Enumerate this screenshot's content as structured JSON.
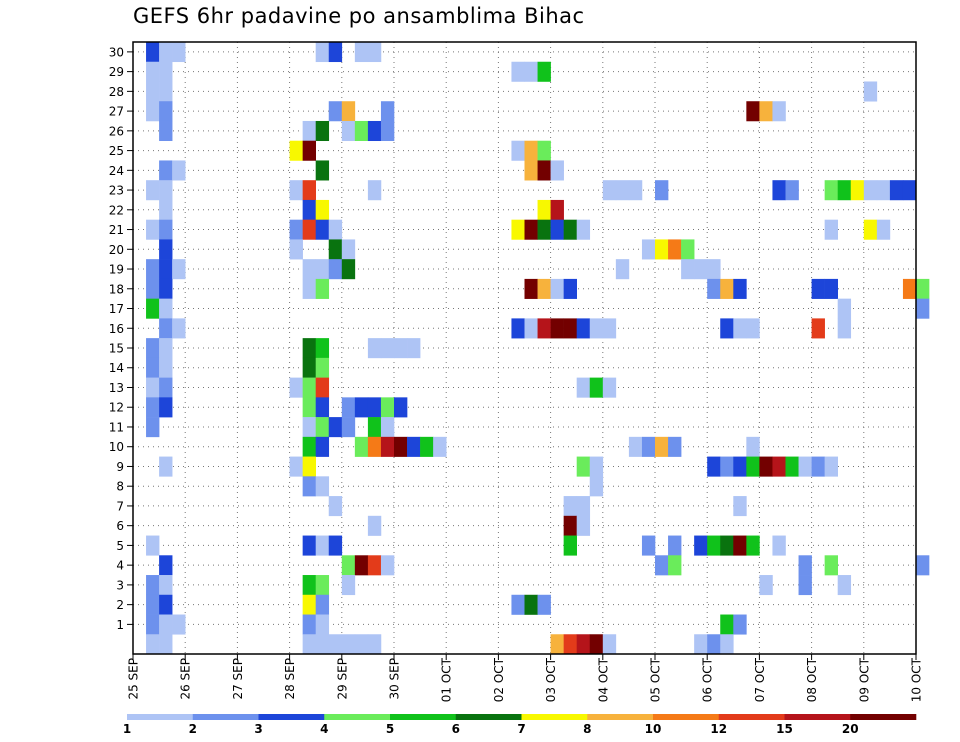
{
  "chart_data": {
    "type": "heatmap",
    "title": "GEFS 6hr padavine po ansamblima Bihac",
    "xlabel": "",
    "ylabel": "",
    "x_tick_labels": [
      "25 SEP",
      "26 SEP",
      "27 SEP",
      "28 SEP",
      "29 SEP",
      "30 SEP",
      "01 OCT",
      "02 OCT",
      "03 OCT",
      "04 OCT",
      "05 OCT",
      "06 OCT",
      "07 OCT",
      "08 OCT",
      "09 OCT",
      "10 OCT"
    ],
    "y_tick_labels": [
      "1",
      "2",
      "3",
      "4",
      "5",
      "6",
      "7",
      "8",
      "9",
      "10",
      "11",
      "12",
      "13",
      "14",
      "15",
      "16",
      "17",
      "18",
      "19",
      "20",
      "21",
      "22",
      "23",
      "24",
      "25",
      "26",
      "27",
      "28",
      "29",
      "30"
    ],
    "x_range": [
      "25 SEP 00Z",
      "10 OCT 00Z"
    ],
    "time_step_hours": 6,
    "y_range": [
      0,
      30
    ],
    "grid": "dotted",
    "legend_position": "bottom",
    "legend_levels": [
      {
        "label": "1",
        "color": "#aec4f5"
      },
      {
        "label": "2",
        "color": "#6d91ed"
      },
      {
        "label": "3",
        "color": "#1d45d9"
      },
      {
        "label": "4",
        "color": "#6aec5b"
      },
      {
        "label": "5",
        "color": "#10c21b"
      },
      {
        "label": "6",
        "color": "#09730f"
      },
      {
        "label": "7",
        "color": "#f8f800"
      },
      {
        "label": "8",
        "color": "#f7b23c"
      },
      {
        "label": "10",
        "color": "#f57a17"
      },
      {
        "label": "12",
        "color": "#e33b1a"
      },
      {
        "label": "15",
        "color": "#b5141a"
      },
      {
        "label": "20",
        "color": "#730000"
      }
    ],
    "cell_encoding": "level index 1-12 matching legend_levels; step = 6-hour step from 25 SEP 00Z",
    "cells": [
      {
        "member": 30,
        "steps": [
          [
            1,
            3
          ],
          [
            2,
            1
          ],
          [
            3,
            1
          ],
          [
            14,
            1
          ],
          [
            15,
            3
          ],
          [
            17,
            1
          ],
          [
            18,
            1
          ]
        ]
      },
      {
        "member": 29,
        "steps": [
          [
            1,
            1
          ],
          [
            2,
            1
          ],
          [
            29,
            1
          ],
          [
            30,
            1
          ],
          [
            31,
            5
          ]
        ]
      },
      {
        "member": 28,
        "steps": [
          [
            1,
            1
          ],
          [
            2,
            1
          ],
          [
            56,
            1
          ]
        ]
      },
      {
        "member": 27,
        "steps": [
          [
            1,
            1
          ],
          [
            2,
            2
          ],
          [
            15,
            2
          ],
          [
            16,
            8
          ],
          [
            19,
            2
          ],
          [
            47,
            12
          ],
          [
            48,
            8
          ],
          [
            49,
            1
          ]
        ]
      },
      {
        "member": 26,
        "steps": [
          [
            2,
            2
          ],
          [
            13,
            1
          ],
          [
            14,
            6
          ],
          [
            16,
            1
          ],
          [
            17,
            4
          ],
          [
            18,
            3
          ],
          [
            19,
            2
          ]
        ]
      },
      {
        "member": 25,
        "steps": [
          [
            12,
            7
          ],
          [
            13,
            12
          ],
          [
            29,
            1
          ],
          [
            30,
            8
          ],
          [
            31,
            4
          ]
        ]
      },
      {
        "member": 24,
        "steps": [
          [
            2,
            2
          ],
          [
            3,
            1
          ],
          [
            14,
            6
          ],
          [
            30,
            8
          ],
          [
            31,
            12
          ],
          [
            32,
            1
          ]
        ]
      },
      {
        "member": 23,
        "steps": [
          [
            1,
            1
          ],
          [
            2,
            1
          ],
          [
            12,
            1
          ],
          [
            13,
            10
          ],
          [
            18,
            1
          ],
          [
            36,
            1
          ],
          [
            37,
            1
          ],
          [
            38,
            1
          ],
          [
            40,
            2
          ],
          [
            49,
            3
          ],
          [
            50,
            2
          ],
          [
            53,
            4
          ],
          [
            54,
            5
          ],
          [
            55,
            7
          ],
          [
            56,
            1
          ],
          [
            57,
            1
          ],
          [
            58,
            3
          ],
          [
            59,
            3
          ]
        ]
      },
      {
        "member": 22,
        "steps": [
          [
            2,
            1
          ],
          [
            13,
            3
          ],
          [
            14,
            7
          ],
          [
            31,
            7
          ],
          [
            32,
            11
          ]
        ]
      },
      {
        "member": 21,
        "steps": [
          [
            1,
            1
          ],
          [
            2,
            2
          ],
          [
            12,
            2
          ],
          [
            13,
            10
          ],
          [
            14,
            3
          ],
          [
            15,
            1
          ],
          [
            29,
            7
          ],
          [
            30,
            12
          ],
          [
            31,
            6
          ],
          [
            32,
            3
          ],
          [
            33,
            6
          ],
          [
            34,
            1
          ],
          [
            53,
            1
          ],
          [
            56,
            7
          ],
          [
            57,
            1
          ]
        ]
      },
      {
        "member": 20,
        "steps": [
          [
            2,
            3
          ],
          [
            12,
            1
          ],
          [
            15,
            6
          ],
          [
            16,
            1
          ],
          [
            39,
            1
          ],
          [
            40,
            7
          ],
          [
            41,
            9
          ],
          [
            42,
            4
          ]
        ]
      },
      {
        "member": 19,
        "steps": [
          [
            1,
            2
          ],
          [
            2,
            3
          ],
          [
            3,
            1
          ],
          [
            13,
            1
          ],
          [
            14,
            1
          ],
          [
            15,
            2
          ],
          [
            16,
            6
          ],
          [
            37,
            1
          ],
          [
            42,
            1
          ],
          [
            43,
            1
          ],
          [
            44,
            1
          ]
        ]
      },
      {
        "member": 18,
        "steps": [
          [
            1,
            2
          ],
          [
            2,
            3
          ],
          [
            13,
            1
          ],
          [
            14,
            4
          ],
          [
            30,
            12
          ],
          [
            31,
            8
          ],
          [
            32,
            1
          ],
          [
            33,
            3
          ],
          [
            44,
            2
          ],
          [
            45,
            8
          ],
          [
            46,
            3
          ],
          [
            52,
            3
          ],
          [
            53,
            3
          ],
          [
            59,
            9
          ],
          [
            60,
            4
          ]
        ]
      },
      {
        "member": 17,
        "steps": [
          [
            1,
            5
          ],
          [
            2,
            1
          ],
          [
            54,
            1
          ],
          [
            60,
            2
          ]
        ]
      },
      {
        "member": 16,
        "steps": [
          [
            2,
            2
          ],
          [
            3,
            1
          ],
          [
            29,
            3
          ],
          [
            30,
            1
          ],
          [
            31,
            11
          ],
          [
            32,
            12
          ],
          [
            33,
            12
          ],
          [
            34,
            3
          ],
          [
            35,
            1
          ],
          [
            36,
            1
          ],
          [
            45,
            3
          ],
          [
            46,
            1
          ],
          [
            47,
            1
          ],
          [
            52,
            10
          ],
          [
            54,
            1
          ]
        ]
      },
      {
        "member": 15,
        "steps": [
          [
            1,
            2
          ],
          [
            2,
            1
          ],
          [
            13,
            6
          ],
          [
            14,
            5
          ],
          [
            18,
            1
          ],
          [
            19,
            1
          ],
          [
            20,
            1
          ],
          [
            21,
            1
          ]
        ]
      },
      {
        "member": 14,
        "steps": [
          [
            1,
            2
          ],
          [
            2,
            1
          ],
          [
            13,
            6
          ],
          [
            14,
            4
          ]
        ]
      },
      {
        "member": 13,
        "steps": [
          [
            1,
            1
          ],
          [
            2,
            2
          ],
          [
            12,
            1
          ],
          [
            13,
            4
          ],
          [
            14,
            10
          ],
          [
            34,
            1
          ],
          [
            35,
            5
          ],
          [
            36,
            1
          ]
        ]
      },
      {
        "member": 12,
        "steps": [
          [
            1,
            2
          ],
          [
            2,
            3
          ],
          [
            13,
            4
          ],
          [
            14,
            3
          ],
          [
            16,
            2
          ],
          [
            17,
            3
          ],
          [
            18,
            3
          ],
          [
            19,
            4
          ],
          [
            20,
            3
          ]
        ]
      },
      {
        "member": 11,
        "steps": [
          [
            1,
            2
          ],
          [
            13,
            1
          ],
          [
            14,
            4
          ],
          [
            15,
            3
          ],
          [
            16,
            2
          ],
          [
            18,
            5
          ],
          [
            19,
            1
          ]
        ]
      },
      {
        "member": 10,
        "steps": [
          [
            13,
            5
          ],
          [
            14,
            3
          ],
          [
            17,
            4
          ],
          [
            18,
            9
          ],
          [
            19,
            11
          ],
          [
            20,
            12
          ],
          [
            21,
            3
          ],
          [
            22,
            5
          ],
          [
            23,
            1
          ],
          [
            38,
            1
          ],
          [
            39,
            2
          ],
          [
            40,
            8
          ],
          [
            41,
            2
          ],
          [
            47,
            1
          ]
        ]
      },
      {
        "member": 9,
        "steps": [
          [
            2,
            1
          ],
          [
            12,
            1
          ],
          [
            13,
            7
          ],
          [
            34,
            4
          ],
          [
            35,
            1
          ],
          [
            44,
            3
          ],
          [
            45,
            2
          ],
          [
            46,
            3
          ],
          [
            47,
            5
          ],
          [
            48,
            12
          ],
          [
            49,
            11
          ],
          [
            50,
            5
          ],
          [
            51,
            1
          ],
          [
            52,
            2
          ],
          [
            53,
            1
          ]
        ]
      },
      {
        "member": 8,
        "steps": [
          [
            13,
            2
          ],
          [
            14,
            1
          ],
          [
            35,
            1
          ]
        ]
      },
      {
        "member": 7,
        "steps": [
          [
            15,
            1
          ],
          [
            33,
            1
          ],
          [
            34,
            1
          ],
          [
            46,
            1
          ]
        ]
      },
      {
        "member": 6,
        "steps": [
          [
            18,
            1
          ],
          [
            33,
            12
          ],
          [
            34,
            1
          ]
        ]
      },
      {
        "member": 5,
        "steps": [
          [
            1,
            1
          ],
          [
            13,
            3
          ],
          [
            14,
            1
          ],
          [
            15,
            3
          ],
          [
            33,
            5
          ],
          [
            39,
            2
          ],
          [
            41,
            2
          ],
          [
            43,
            3
          ],
          [
            44,
            5
          ],
          [
            45,
            6
          ],
          [
            46,
            12
          ],
          [
            47,
            5
          ],
          [
            49,
            1
          ]
        ]
      },
      {
        "member": 4,
        "steps": [
          [
            2,
            3
          ],
          [
            16,
            4
          ],
          [
            17,
            12
          ],
          [
            18,
            10
          ],
          [
            19,
            1
          ],
          [
            40,
            2
          ],
          [
            41,
            4
          ],
          [
            51,
            2
          ],
          [
            53,
            4
          ],
          [
            60,
            2
          ]
        ]
      },
      {
        "member": 3,
        "steps": [
          [
            1,
            2
          ],
          [
            2,
            1
          ],
          [
            13,
            5
          ],
          [
            14,
            4
          ],
          [
            16,
            1
          ],
          [
            48,
            1
          ],
          [
            51,
            2
          ],
          [
            54,
            1
          ]
        ]
      },
      {
        "member": 2,
        "steps": [
          [
            1,
            2
          ],
          [
            2,
            3
          ],
          [
            13,
            7
          ],
          [
            14,
            2
          ],
          [
            29,
            2
          ],
          [
            30,
            6
          ],
          [
            31,
            2
          ]
        ]
      },
      {
        "member": 1,
        "steps": [
          [
            1,
            2
          ],
          [
            2,
            1
          ],
          [
            3,
            1
          ],
          [
            13,
            2
          ],
          [
            14,
            1
          ],
          [
            45,
            5
          ],
          [
            46,
            2
          ]
        ]
      },
      {
        "member": 0,
        "steps": [
          [
            1,
            1
          ],
          [
            2,
            1
          ],
          [
            13,
            1
          ],
          [
            14,
            1
          ],
          [
            15,
            1
          ],
          [
            16,
            1
          ],
          [
            17,
            1
          ],
          [
            18,
            1
          ],
          [
            32,
            8
          ],
          [
            33,
            10
          ],
          [
            34,
            11
          ],
          [
            35,
            12
          ],
          [
            36,
            1
          ],
          [
            43,
            1
          ],
          [
            44,
            2
          ],
          [
            45,
            1
          ]
        ]
      }
    ]
  }
}
